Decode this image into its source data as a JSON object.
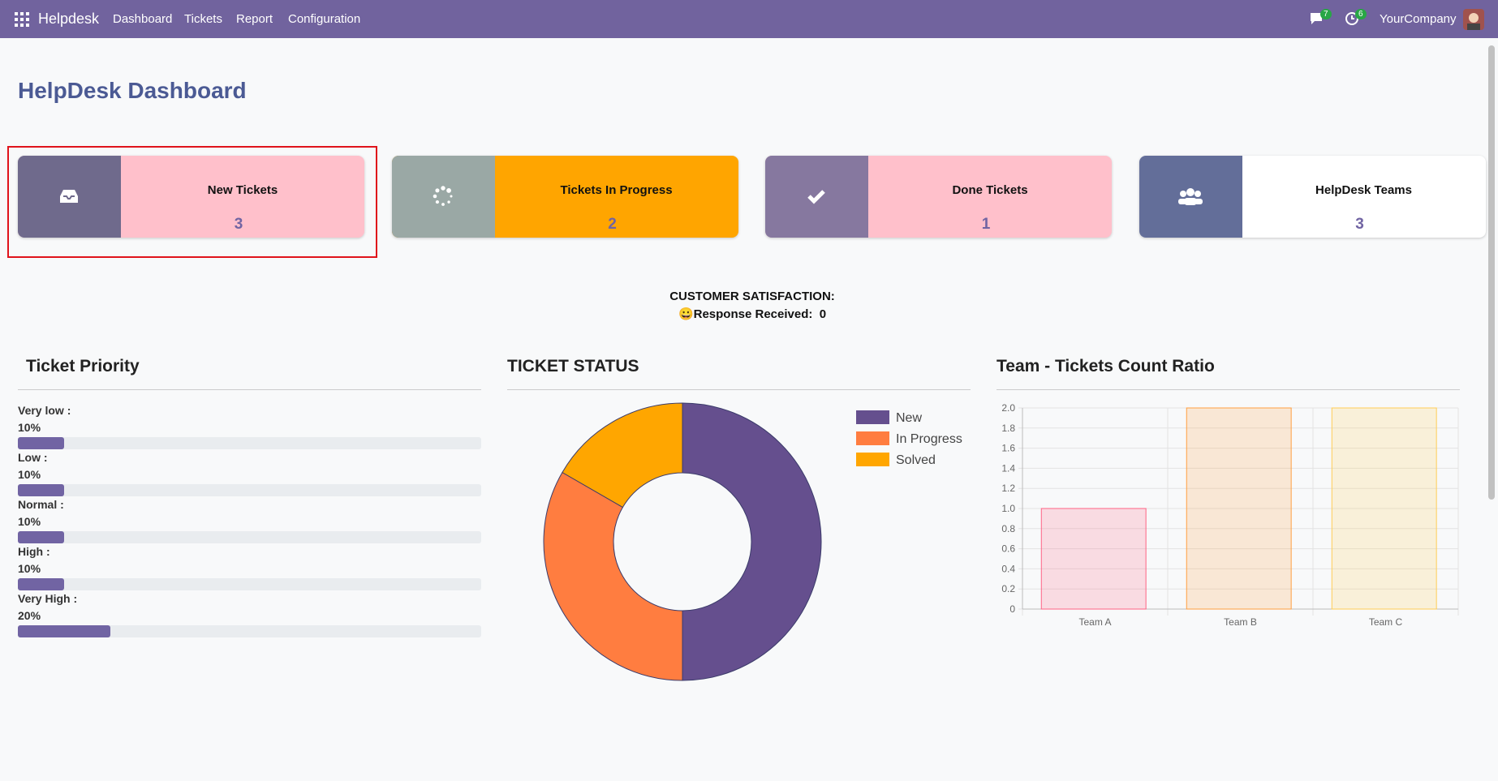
{
  "navbar": {
    "app": "Helpdesk",
    "menu": [
      "Dashboard",
      "Tickets",
      "Report",
      "Configuration"
    ],
    "messages": 7,
    "activities": 6,
    "company": "YourCompany"
  },
  "title": "HelpDesk Dashboard",
  "cards": [
    {
      "label": "New Tickets",
      "count": 3,
      "icon_color": "#6f6a8c",
      "color": "#ffc0cb"
    },
    {
      "label": "Tickets In Progress",
      "count": 2,
      "icon_color": "#9aa8a5",
      "color": "#ffa500"
    },
    {
      "label": "Done Tickets",
      "count": 1,
      "icon_color": "#86789f",
      "color": "#ffc0cb"
    },
    {
      "label": "HelpDesk Teams",
      "count": 3,
      "icon_color": "#636e99",
      "color": "#ffffff"
    }
  ],
  "satisfaction": {
    "heading": "CUSTOMER SATISFACTION:",
    "label": "😀Response Received:",
    "value": 0
  },
  "priority": {
    "title": "Ticket Priority",
    "color": "#7164a3",
    "items": [
      {
        "label": "Very low :",
        "value": 10,
        "value_label": "10%"
      },
      {
        "label": "Low :",
        "value": 10,
        "value_label": "10%"
      },
      {
        "label": "Normal :",
        "value": 10,
        "value_label": "10%"
      },
      {
        "label": "High :",
        "value": 10,
        "value_label": "10%"
      },
      {
        "label": "Very High :",
        "value": 20,
        "value_label": "20%"
      }
    ]
  },
  "ticket_status": {
    "type": "pie",
    "title": "TICKET STATUS",
    "categories": [
      "New",
      "In Progress",
      "Solved"
    ],
    "values": [
      3,
      2,
      1
    ],
    "colors": [
      "#654f8e",
      "#ff7d40",
      "#ffa600"
    ]
  },
  "team_chart": {
    "type": "bar",
    "title": "Team - Tickets Count Ratio",
    "categories": [
      "Team A",
      "Team B",
      "Team C"
    ],
    "values": [
      1,
      2,
      2
    ],
    "colors": [
      "rgba(255,99,132,0.2)",
      "rgba(255,159,64,0.2)",
      "rgba(255,205,86,0.2)"
    ],
    "border_colors": [
      "#ff6384",
      "#ff9f40",
      "#ffcd56"
    ],
    "ylim": [
      0,
      2
    ],
    "yticks": [
      0,
      0.2,
      0.4,
      0.6,
      0.8,
      {
        "value": 1,
        "label": "1.0"
      },
      1.2,
      1.4,
      1.6,
      1.8,
      {
        "value": 2,
        "label": "2.0"
      }
    ],
    "grid": true
  }
}
